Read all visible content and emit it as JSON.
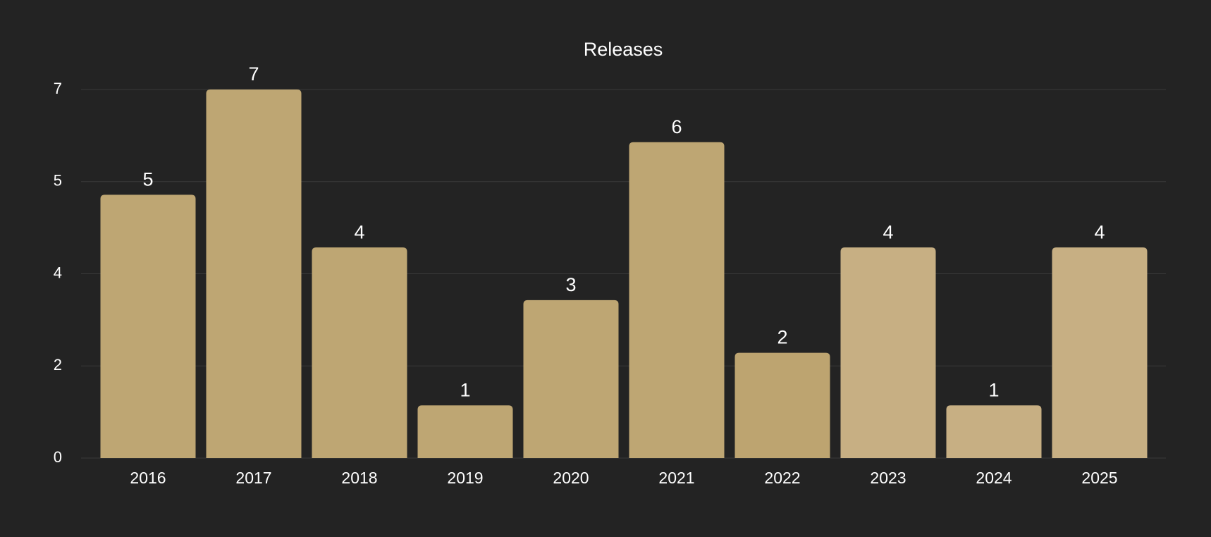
{
  "chart_data": {
    "type": "bar",
    "title": "Releases",
    "categories": [
      "2016",
      "2017",
      "2018",
      "2019",
      "2020",
      "2021",
      "2022",
      "2023",
      "2024",
      "2025"
    ],
    "values": [
      5,
      7,
      4,
      1,
      3,
      6,
      2,
      4,
      1,
      4
    ],
    "colors": [
      "#bea673",
      "#bea673",
      "#bea673",
      "#bea673",
      "#bea673",
      "#bea673",
      "#bda470",
      "#c7af83",
      "#c7af83",
      "#c7af83"
    ],
    "ylim": [
      0,
      7
    ],
    "yticks": [
      0,
      {
        "value": 1.75,
        "label": "2"
      },
      {
        "value": 3.5,
        "label": "4"
      },
      {
        "value": 5.25,
        "label": "5"
      },
      7
    ],
    "grid": true
  }
}
